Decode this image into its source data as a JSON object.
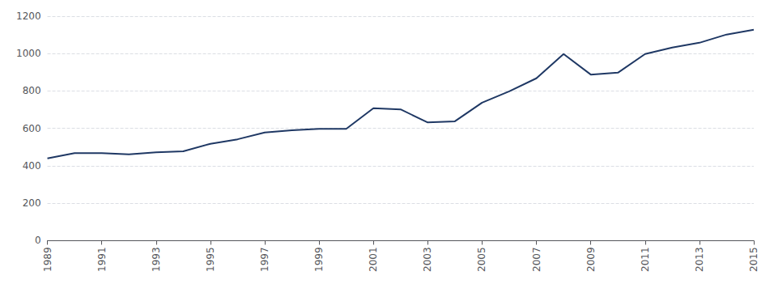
{
  "chart_data": {
    "type": "line",
    "x": [
      1989,
      1990,
      1991,
      1992,
      1993,
      1994,
      1995,
      1996,
      1997,
      1998,
      1999,
      2000,
      2001,
      2002,
      2003,
      2004,
      2005,
      2006,
      2007,
      2008,
      2009,
      2010,
      2011,
      2012,
      2013,
      2014,
      2015
    ],
    "values": [
      440,
      468,
      468,
      462,
      472,
      478,
      518,
      542,
      578,
      590,
      598,
      598,
      708,
      702,
      632,
      638,
      738,
      798,
      868,
      998,
      888,
      898,
      998,
      1032,
      1058,
      1102,
      1128
    ],
    "color": "#1F3864",
    "xlim": [
      1989,
      2015
    ],
    "ylim": [
      0,
      1200
    ],
    "xticks": [
      1989,
      1991,
      1993,
      1995,
      1997,
      1999,
      2001,
      2003,
      2005,
      2007,
      2009,
      2011,
      2013,
      2015
    ],
    "yticks": [
      0,
      200,
      400,
      600,
      800,
      1000,
      1200
    ],
    "grid": true
  }
}
